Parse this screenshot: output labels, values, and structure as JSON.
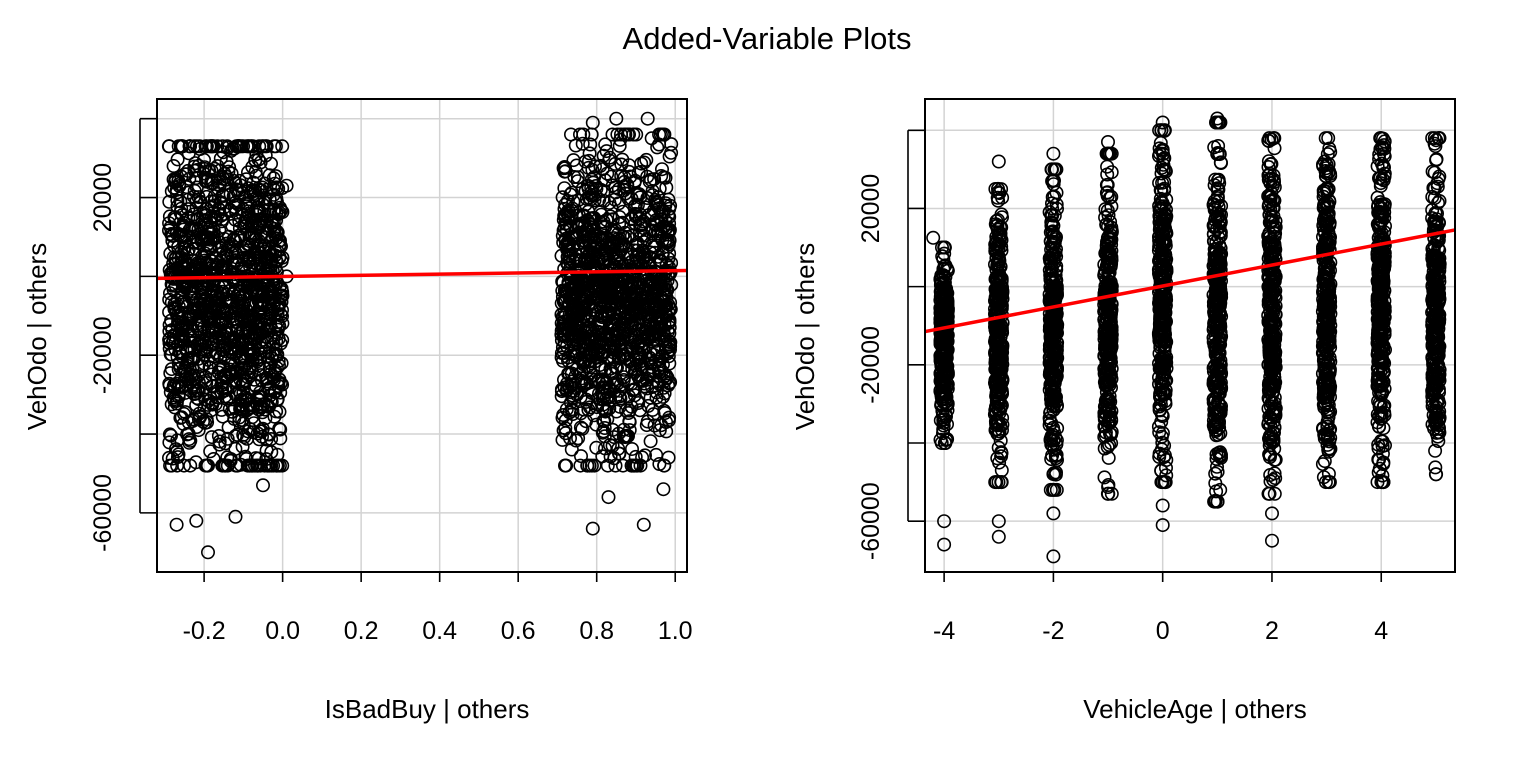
{
  "figure": {
    "title": "Added-Variable Plots"
  },
  "chart_data": [
    {
      "type": "scatter",
      "title": "",
      "xlabel": "IsBadBuy | others",
      "ylabel": "VehOdo  | others",
      "xlim": [
        -0.32,
        1.03
      ],
      "ylim": [
        -75000,
        45000
      ],
      "xticks": [
        -0.2,
        0.0,
        0.2,
        0.4,
        0.6,
        0.8,
        1.0
      ],
      "xtick_labels": [
        "-0.2",
        "0.0",
        "0.2",
        "0.4",
        "0.6",
        "0.8",
        "1.0"
      ],
      "yticks": [
        -60000,
        -40000,
        -20000,
        0,
        20000,
        40000
      ],
      "ytick_labels": [
        "-60000",
        "",
        "-20000",
        "",
        "20000",
        ""
      ],
      "grid": true,
      "point_style": "open-circle",
      "point_color": "#000000",
      "clusters": [
        {
          "x_range": [
            -0.29,
            0.0
          ],
          "y_range": [
            -48000,
            33000
          ],
          "dense_y_range": [
            -40000,
            28000
          ]
        },
        {
          "x_range": [
            0.71,
            0.99
          ],
          "y_range": [
            -48000,
            36000
          ],
          "dense_y_range": [
            -35000,
            25000
          ]
        }
      ],
      "outliers": [
        [
          -0.27,
          -63000
        ],
        [
          -0.22,
          -62000
        ],
        [
          -0.19,
          -70000
        ],
        [
          -0.12,
          -61000
        ],
        [
          -0.05,
          -53000
        ],
        [
          0.01,
          23000
        ],
        [
          0.01,
          0
        ],
        [
          0.79,
          -64000
        ],
        [
          0.83,
          -56000
        ],
        [
          0.92,
          -63000
        ],
        [
          0.97,
          -54000
        ],
        [
          0.85,
          40000
        ],
        [
          0.79,
          39000
        ],
        [
          0.93,
          40000
        ]
      ],
      "fit_line": {
        "color": "#ff0000",
        "points": [
          [
            -0.32,
            -500
          ],
          [
            1.03,
            1500
          ]
        ]
      }
    },
    {
      "type": "scatter",
      "title": "",
      "xlabel": "VehicleAge | others",
      "ylabel": "VehOdo  | others",
      "xlim": [
        -4.35,
        5.35
      ],
      "ylim": [
        -73000,
        48000
      ],
      "xticks": [
        -4,
        -2,
        0,
        2,
        4
      ],
      "xtick_labels": [
        "-4",
        "-2",
        "0",
        "2",
        "4"
      ],
      "yticks": [
        -60000,
        -40000,
        -20000,
        0,
        20000,
        40000
      ],
      "ytick_labels": [
        "-60000",
        "",
        "-20000",
        "",
        "20000",
        ""
      ],
      "grid": true,
      "point_style": "open-circle",
      "point_color": "#000000",
      "columns": [
        {
          "x": -4,
          "y_range": [
            -40000,
            10000
          ]
        },
        {
          "x": -3,
          "y_range": [
            -50000,
            25000
          ]
        },
        {
          "x": -2,
          "y_range": [
            -52000,
            30000
          ]
        },
        {
          "x": -1,
          "y_range": [
            -53000,
            34000
          ]
        },
        {
          "x": 0,
          "y_range": [
            -50000,
            40000
          ]
        },
        {
          "x": 1,
          "y_range": [
            -55000,
            42000
          ]
        },
        {
          "x": 2,
          "y_range": [
            -53000,
            38000
          ]
        },
        {
          "x": 3,
          "y_range": [
            -50000,
            38000
          ]
        },
        {
          "x": 4,
          "y_range": [
            -50000,
            38000
          ]
        },
        {
          "x": 5,
          "y_range": [
            -48000,
            38000
          ]
        }
      ],
      "outliers": [
        [
          -4,
          -60000
        ],
        [
          -4,
          -66000
        ],
        [
          -4.2,
          12500
        ],
        [
          -3,
          -60000
        ],
        [
          -3,
          -64000
        ],
        [
          -3,
          32000
        ],
        [
          -2,
          -58000
        ],
        [
          -2,
          -69000
        ],
        [
          -2,
          34000
        ],
        [
          -1,
          37000
        ],
        [
          0,
          -56000
        ],
        [
          0,
          -61000
        ],
        [
          0,
          42000
        ],
        [
          1,
          43000
        ],
        [
          2,
          -58000
        ],
        [
          2,
          -65000
        ],
        [
          4,
          38000
        ],
        [
          5,
          -48000
        ]
      ],
      "fit_line": {
        "color": "#ff0000",
        "points": [
          [
            -4.35,
            -11500
          ],
          [
            5.35,
            14500
          ]
        ]
      }
    }
  ]
}
